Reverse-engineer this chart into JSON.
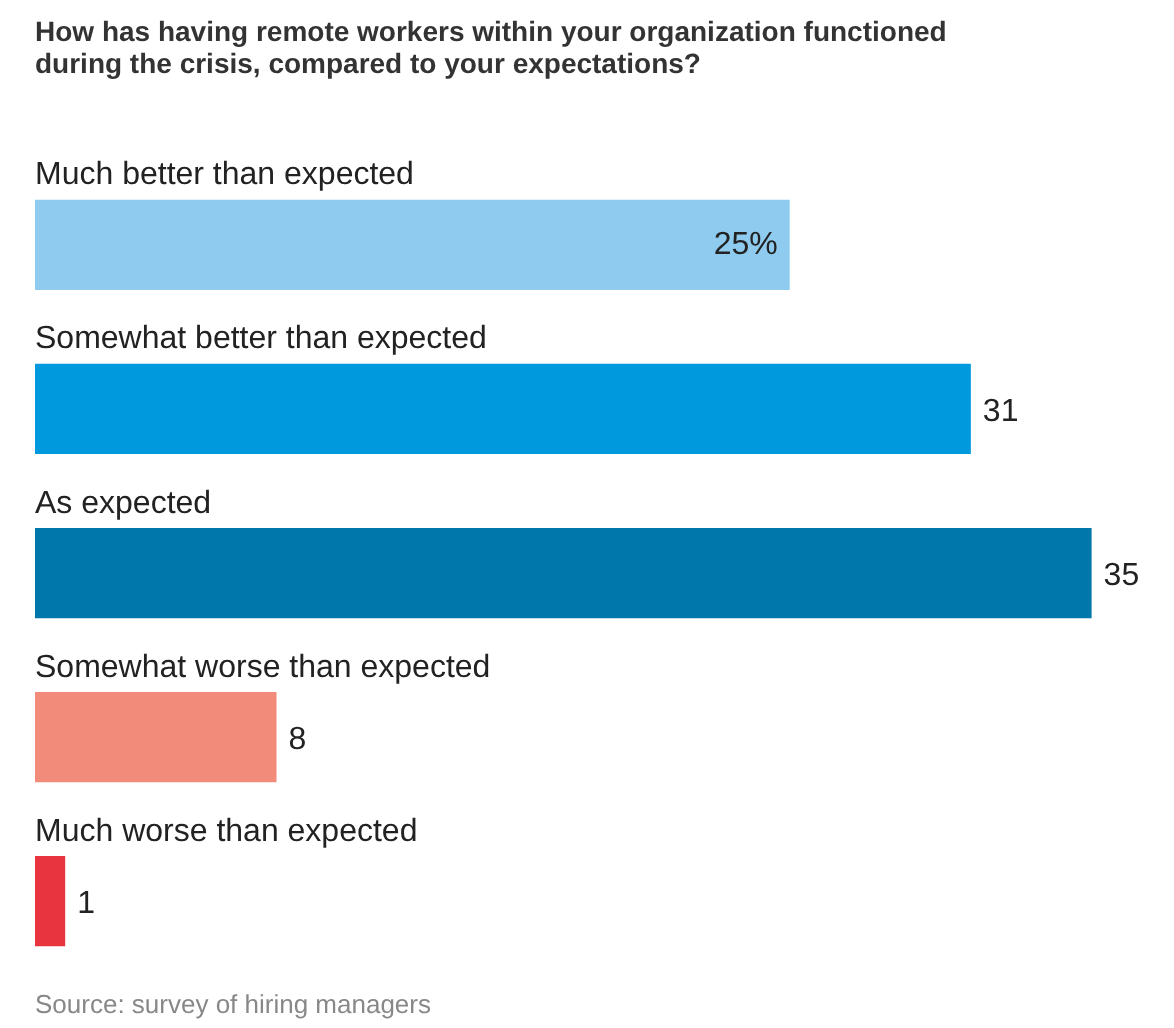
{
  "chart_data": {
    "type": "bar",
    "orientation": "horizontal",
    "title": "How has having remote workers within your organization functioned during the crisis, compared to your expectations?",
    "categories": [
      "Much better than expected",
      "Somewhat better than expected",
      "As expected",
      "Somewhat worse than expected",
      "Much worse than expected"
    ],
    "values": [
      25,
      31,
      35,
      8,
      1
    ],
    "colors": [
      "#8ecbef",
      "#0099dd",
      "#0077aa",
      "#f28b7a",
      "#e8343f"
    ],
    "value_labels": [
      "25%",
      "31",
      "35",
      "8",
      "1"
    ],
    "annotations": [
      "Source: survey of hiring managers"
    ]
  }
}
